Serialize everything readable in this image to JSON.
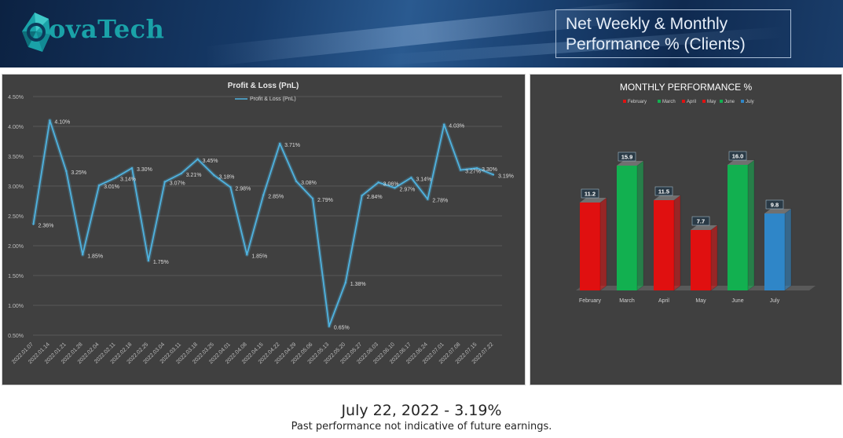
{
  "header": {
    "logo_text": "ovaTech",
    "title_line1": "Net Weekly & Monthly",
    "title_line2": "Performance % (Clients)"
  },
  "colors": {
    "line": "#4fb3e0",
    "red": "#e01010",
    "green": "#12b050",
    "blue": "#2f86c8",
    "panel": "#404040"
  },
  "chart_data": [
    {
      "type": "line",
      "title": "Profit & Loss (PnL)",
      "legend": "top-center",
      "grid": true,
      "y_axis_format": "percent",
      "ylim": [
        0.5,
        4.5
      ],
      "yticks": [
        "0.50%",
        "1.00%",
        "1.50%",
        "2.00%",
        "2.50%",
        "3.00%",
        "3.50%",
        "4.00%",
        "4.50%"
      ],
      "x": [
        "2022.01.07",
        "2022.01.14",
        "2022.01.21",
        "2022.01.28",
        "2022.02.04",
        "2022.02.11",
        "2022.02.18",
        "2022.02.25",
        "2022.03.04",
        "2022.03.11",
        "2022.03.18",
        "2022.03.25",
        "2022.04.01",
        "2022.04.08",
        "2022.04.15",
        "2022.04.22",
        "2022.04.29",
        "2022.05.06",
        "2022.05.13",
        "2022.05.20",
        "2022.05.27",
        "2022.06.03",
        "2022.06.10",
        "2022.06.17",
        "2022.06.24",
        "2022.07.01",
        "2022.07.08",
        "2022.07.15",
        "2022.07.22"
      ],
      "series": [
        {
          "name": "Profit & Loss (PnL)",
          "values": [
            2.36,
            4.1,
            3.25,
            1.85,
            3.01,
            3.14,
            3.3,
            1.75,
            3.07,
            3.21,
            3.45,
            3.18,
            2.98,
            1.85,
            2.85,
            3.71,
            3.08,
            2.79,
            0.65,
            1.38,
            2.84,
            3.06,
            2.97,
            3.14,
            2.78,
            4.03,
            3.27,
            3.3,
            3.19
          ],
          "labels": [
            "2.36%",
            "4.10%",
            "3.25%",
            "1.85%",
            "3.01%",
            "3.14%",
            "3.30%",
            "1.75%",
            "3.07%",
            "3.21%",
            "3.45%",
            "3.18%",
            "2.98%",
            "1.85%",
            "2.85%",
            "3.71%",
            "3.08%",
            "2.79%",
            "0.65%",
            "1.38%",
            "2.84%",
            "3.06%",
            "2.97%",
            "3.14%",
            "2.78%",
            "4.03%",
            "3.27%",
            "3.30%",
            "3.19%"
          ]
        }
      ]
    },
    {
      "type": "bar",
      "title": "MONTHLY PERFORMANCE %",
      "legend": "top-center",
      "style": "3d-column",
      "categories": [
        "February",
        "March",
        "April",
        "May",
        "June",
        "July"
      ],
      "values": [
        11.2,
        15.9,
        11.5,
        7.7,
        16.0,
        9.8
      ],
      "value_labels": [
        "11.2",
        "15.9",
        "11.5",
        "7.7",
        "16.0",
        "9.8"
      ],
      "bar_colors": [
        "#e01010",
        "#12b050",
        "#e01010",
        "#e01010",
        "#12b050",
        "#2f86c8"
      ],
      "ylim": [
        0,
        18
      ]
    }
  ],
  "footer": {
    "headline": "July 22, 2022 - 3.19%",
    "disclaimer": "Past performance not indicative of future earnings."
  }
}
